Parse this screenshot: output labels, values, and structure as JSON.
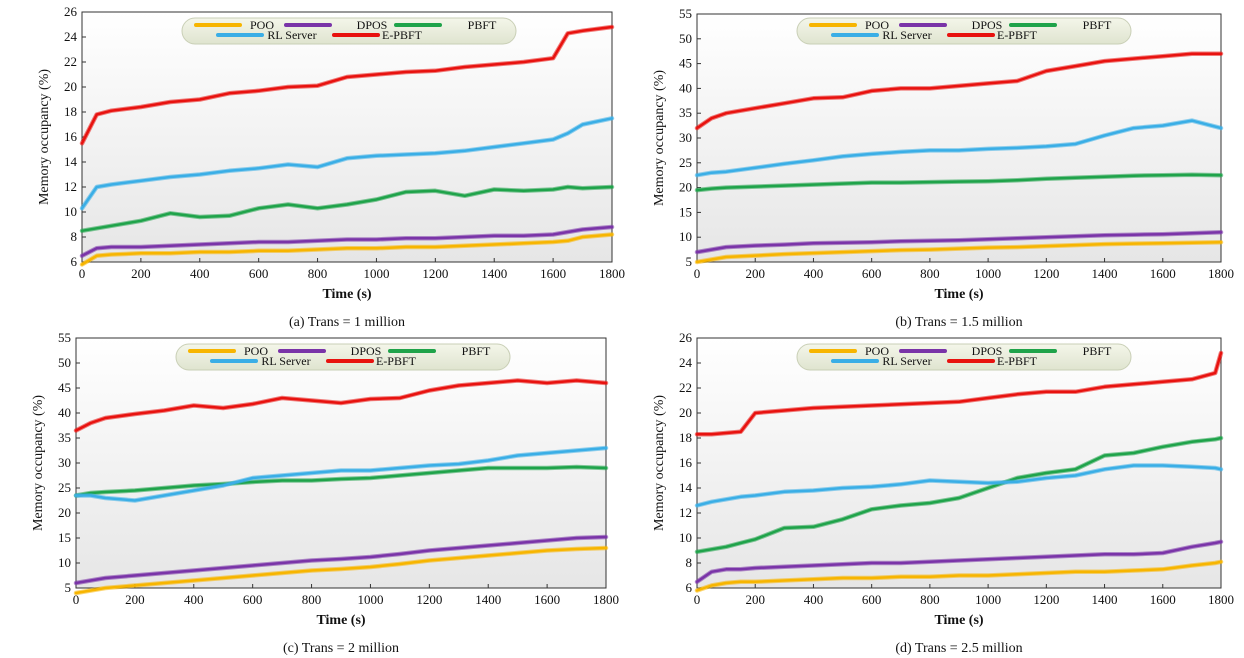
{
  "legend": [
    "POO",
    "DPOS",
    "PBFT",
    "RL Server",
    "E-PBFT"
  ],
  "colors": {
    "POO": "#f7b500",
    "DPOS": "#7a34a8",
    "PBFT": "#1fa34a",
    "RL Server": "#3aaee6",
    "E-PBFT": "#e8120f"
  },
  "chart_data": [
    {
      "type": "line",
      "caption": "(a) Trans = 1 million",
      "xlabel": "Time (s)",
      "ylabel": "Memory occupancy (%)",
      "xlim": [
        0,
        1800
      ],
      "ylim": [
        6,
        26
      ],
      "xticks": [
        0,
        200,
        400,
        600,
        800,
        1000,
        1200,
        1400,
        1600,
        1800
      ],
      "yticks": [
        6,
        8,
        10,
        12,
        14,
        16,
        18,
        20,
        22,
        24,
        26
      ],
      "x": [
        0,
        50,
        100,
        200,
        300,
        400,
        500,
        600,
        700,
        800,
        900,
        1000,
        1100,
        1200,
        1300,
        1400,
        1500,
        1600,
        1650,
        1700,
        1800
      ],
      "series": [
        {
          "name": "POO",
          "values": [
            5.8,
            6.5,
            6.6,
            6.7,
            6.7,
            6.8,
            6.8,
            6.9,
            6.9,
            7.0,
            7.1,
            7.1,
            7.2,
            7.2,
            7.3,
            7.4,
            7.5,
            7.6,
            7.7,
            8.0,
            8.2
          ]
        },
        {
          "name": "DPOS",
          "values": [
            6.5,
            7.1,
            7.2,
            7.2,
            7.3,
            7.4,
            7.5,
            7.6,
            7.6,
            7.7,
            7.8,
            7.8,
            7.9,
            7.9,
            8.0,
            8.1,
            8.1,
            8.2,
            8.4,
            8.6,
            8.8
          ]
        },
        {
          "name": "PBFT",
          "values": [
            8.5,
            8.7,
            8.9,
            9.3,
            9.9,
            9.6,
            9.7,
            10.3,
            10.6,
            10.3,
            10.6,
            11.0,
            11.6,
            11.7,
            11.3,
            11.8,
            11.7,
            11.8,
            12.0,
            11.9,
            12.0
          ]
        },
        {
          "name": "RL Server",
          "values": [
            10.3,
            12.0,
            12.2,
            12.5,
            12.8,
            13.0,
            13.3,
            13.5,
            13.8,
            13.6,
            14.3,
            14.5,
            14.6,
            14.7,
            14.9,
            15.2,
            15.5,
            15.8,
            16.3,
            17.0,
            17.5
          ]
        },
        {
          "name": "E-PBFT",
          "values": [
            15.5,
            17.8,
            18.1,
            18.4,
            18.8,
            19.0,
            19.5,
            19.7,
            20.0,
            20.1,
            20.8,
            21.0,
            21.2,
            21.3,
            21.6,
            21.8,
            22.0,
            22.3,
            24.3,
            24.5,
            24.8
          ]
        }
      ]
    },
    {
      "type": "line",
      "caption": "(b) Trans = 1.5 million",
      "xlabel": "Time (s)",
      "ylabel": "Memory occupancy (%)",
      "xlim": [
        0,
        1800
      ],
      "ylim": [
        5,
        55
      ],
      "xticks": [
        0,
        200,
        400,
        600,
        800,
        1000,
        1200,
        1400,
        1600,
        1800
      ],
      "yticks": [
        5,
        10,
        15,
        20,
        25,
        30,
        35,
        40,
        45,
        50,
        55
      ],
      "x": [
        0,
        50,
        100,
        200,
        300,
        400,
        500,
        600,
        700,
        800,
        900,
        1000,
        1100,
        1200,
        1300,
        1400,
        1500,
        1600,
        1700,
        1800
      ],
      "series": [
        {
          "name": "POO",
          "values": [
            5.0,
            5.5,
            6.0,
            6.3,
            6.6,
            6.8,
            7.0,
            7.2,
            7.4,
            7.5,
            7.7,
            7.9,
            8.0,
            8.2,
            8.4,
            8.6,
            8.7,
            8.8,
            8.9,
            9.0
          ]
        },
        {
          "name": "DPOS",
          "values": [
            7.0,
            7.5,
            8.0,
            8.3,
            8.5,
            8.8,
            8.9,
            9.0,
            9.2,
            9.3,
            9.4,
            9.6,
            9.8,
            10.0,
            10.2,
            10.4,
            10.5,
            10.6,
            10.8,
            11.0
          ]
        },
        {
          "name": "PBFT",
          "values": [
            19.5,
            19.8,
            20.0,
            20.2,
            20.4,
            20.6,
            20.8,
            21.0,
            21.0,
            21.1,
            21.2,
            21.3,
            21.5,
            21.8,
            22.0,
            22.2,
            22.4,
            22.5,
            22.6,
            22.5
          ]
        },
        {
          "name": "RL Server",
          "values": [
            22.5,
            23.0,
            23.2,
            24.0,
            24.8,
            25.5,
            26.3,
            26.8,
            27.2,
            27.5,
            27.5,
            27.8,
            28.0,
            28.3,
            28.8,
            30.5,
            32.0,
            32.5,
            33.5,
            32.0
          ]
        },
        {
          "name": "E-PBFT",
          "values": [
            32.0,
            34.0,
            35.0,
            36.0,
            37.0,
            38.0,
            38.2,
            39.5,
            40.0,
            40.0,
            40.5,
            41.0,
            41.5,
            43.5,
            44.5,
            45.5,
            46.0,
            46.5,
            47.0,
            47.0
          ]
        }
      ]
    },
    {
      "type": "line",
      "caption": "(c) Trans = 2 million",
      "xlabel": "Time (s)",
      "ylabel": "Memory occupancy (%)",
      "xlim": [
        0,
        1800
      ],
      "ylim": [
        5,
        55
      ],
      "xticks": [
        0,
        200,
        400,
        600,
        800,
        1000,
        1200,
        1400,
        1600,
        1800
      ],
      "yticks": [
        5,
        10,
        15,
        20,
        25,
        30,
        35,
        40,
        45,
        50,
        55
      ],
      "x": [
        0,
        50,
        100,
        200,
        300,
        400,
        500,
        600,
        700,
        800,
        900,
        1000,
        1100,
        1200,
        1300,
        1400,
        1500,
        1600,
        1700,
        1800
      ],
      "series": [
        {
          "name": "POO",
          "values": [
            4.0,
            4.5,
            5.0,
            5.5,
            6.0,
            6.5,
            7.0,
            7.5,
            8.0,
            8.5,
            8.8,
            9.2,
            9.8,
            10.5,
            11.0,
            11.5,
            12.0,
            12.5,
            12.8,
            13.0
          ]
        },
        {
          "name": "DPOS",
          "values": [
            6.0,
            6.5,
            7.0,
            7.5,
            8.0,
            8.5,
            9.0,
            9.5,
            10.0,
            10.5,
            10.8,
            11.2,
            11.8,
            12.5,
            13.0,
            13.5,
            14.0,
            14.5,
            15.0,
            15.2
          ]
        },
        {
          "name": "PBFT",
          "values": [
            23.5,
            24.0,
            24.2,
            24.5,
            25.0,
            25.5,
            25.8,
            26.2,
            26.5,
            26.5,
            26.8,
            27.0,
            27.5,
            28.0,
            28.5,
            29.0,
            29.0,
            29.0,
            29.2,
            29.0
          ]
        },
        {
          "name": "RL Server",
          "values": [
            23.5,
            23.5,
            23.0,
            22.5,
            23.5,
            24.5,
            25.5,
            27.0,
            27.5,
            28.0,
            28.5,
            28.5,
            29.0,
            29.5,
            29.8,
            30.5,
            31.5,
            32.0,
            32.5,
            33.0
          ]
        },
        {
          "name": "E-PBFT",
          "values": [
            36.5,
            38.0,
            39.0,
            39.8,
            40.5,
            41.5,
            41.0,
            41.8,
            43.0,
            42.5,
            42.0,
            42.8,
            43.0,
            44.5,
            45.5,
            46.0,
            46.5,
            46.0,
            46.5,
            46.0
          ]
        }
      ]
    },
    {
      "type": "line",
      "caption": "(d) Trans = 2.5 million",
      "xlabel": "Time (s)",
      "ylabel": "Memory occupancy (%)",
      "xlim": [
        0,
        1800
      ],
      "ylim": [
        6,
        26
      ],
      "xticks": [
        0,
        200,
        400,
        600,
        800,
        1000,
        1200,
        1400,
        1600,
        1800
      ],
      "yticks": [
        6,
        8,
        10,
        12,
        14,
        16,
        18,
        20,
        22,
        24,
        26
      ],
      "x": [
        0,
        50,
        100,
        150,
        200,
        300,
        400,
        500,
        600,
        700,
        800,
        900,
        1000,
        1100,
        1200,
        1300,
        1400,
        1500,
        1600,
        1700,
        1780,
        1800
      ],
      "series": [
        {
          "name": "POO",
          "values": [
            5.8,
            6.2,
            6.4,
            6.5,
            6.5,
            6.6,
            6.7,
            6.8,
            6.8,
            6.9,
            6.9,
            7.0,
            7.0,
            7.1,
            7.2,
            7.3,
            7.3,
            7.4,
            7.5,
            7.8,
            8.0,
            8.1
          ]
        },
        {
          "name": "DPOS",
          "values": [
            6.5,
            7.3,
            7.5,
            7.5,
            7.6,
            7.7,
            7.8,
            7.9,
            8.0,
            8.0,
            8.1,
            8.2,
            8.3,
            8.4,
            8.5,
            8.6,
            8.7,
            8.7,
            8.8,
            9.3,
            9.6,
            9.7
          ]
        },
        {
          "name": "PBFT",
          "values": [
            8.9,
            9.1,
            9.3,
            9.6,
            9.9,
            10.8,
            10.9,
            11.5,
            12.3,
            12.6,
            12.8,
            13.2,
            14.0,
            14.8,
            15.2,
            15.5,
            16.6,
            16.8,
            17.3,
            17.7,
            17.9,
            18.0
          ]
        },
        {
          "name": "RL Server",
          "values": [
            12.6,
            12.9,
            13.1,
            13.3,
            13.4,
            13.7,
            13.8,
            14.0,
            14.1,
            14.3,
            14.6,
            14.5,
            14.4,
            14.5,
            14.8,
            15.0,
            15.5,
            15.8,
            15.8,
            15.7,
            15.6,
            15.5
          ]
        },
        {
          "name": "E-PBFT",
          "values": [
            18.3,
            18.3,
            18.4,
            18.5,
            20.0,
            20.2,
            20.4,
            20.5,
            20.6,
            20.7,
            20.8,
            20.9,
            21.2,
            21.5,
            21.7,
            21.7,
            22.1,
            22.3,
            22.5,
            22.7,
            23.2,
            24.8
          ]
        }
      ]
    }
  ]
}
